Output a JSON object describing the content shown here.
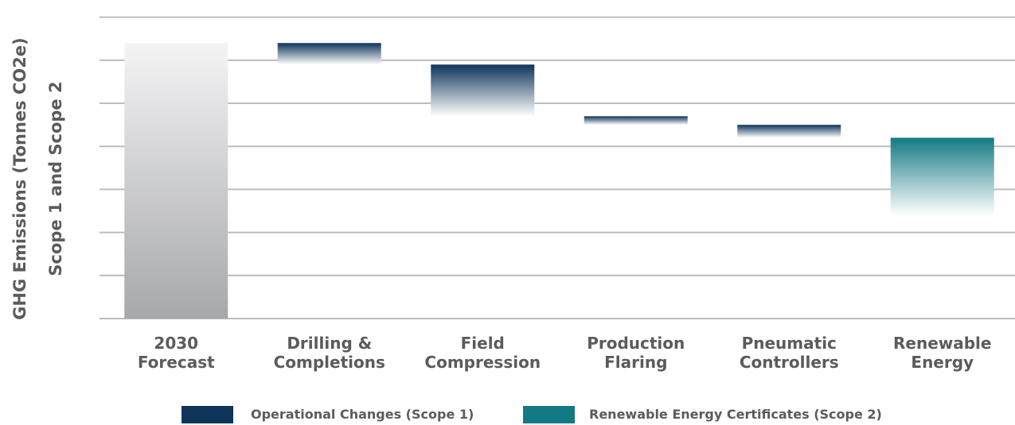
{
  "chart_data": {
    "type": "waterfall",
    "ylabel": [
      "GHG Emissions (Tonnes CO2e)",
      "Scope 1 and Scope 2"
    ],
    "categories": [
      "2030\nForecast",
      "Drilling &\nCompletions",
      "Field\nCompression",
      "Production\nFlaring",
      "Pneumatic\nControllers",
      "Renewable\nEnergy"
    ],
    "start_value": 6.4,
    "start_color": "#a7a8ab",
    "series": [
      {
        "name": "Operational Changes (Scope 1)",
        "color": "#0e3459",
        "values": [
          null,
          -0.5,
          -1.2,
          -0.2,
          -0.3,
          null
        ]
      },
      {
        "name": "Renewable Energy Certificates (Scope 2)",
        "color": "#137a84",
        "values": [
          null,
          null,
          null,
          null,
          null,
          -1.8
        ]
      }
    ],
    "ylim": [
      0,
      7.4
    ],
    "gridlines": [
      0,
      1,
      2,
      3,
      4,
      5,
      6,
      7
    ],
    "grid": true
  }
}
